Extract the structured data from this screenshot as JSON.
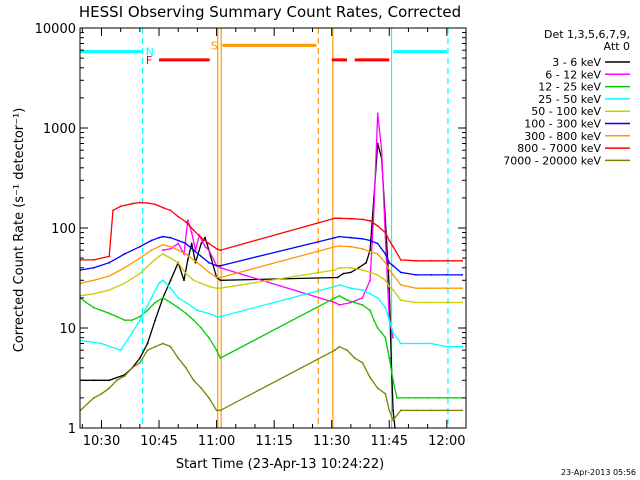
{
  "chart_data": {
    "type": "line",
    "title": "HESSI Observing Summary Count Rates, Corrected",
    "xlabel": "Start Time (23-Apr-13 10:24:22)",
    "ylabel": "Corrected Count Rate (s⁻¹ detector⁻¹)",
    "timestamp": "23-Apr-2013 05:56",
    "x_range_min": [
      624.4,
      725
    ],
    "ylim": [
      1,
      10000
    ],
    "log_y": true,
    "x_ticks": [
      {
        "min": 630,
        "label": "10:30"
      },
      {
        "min": 645,
        "label": "10:45"
      },
      {
        "min": 660,
        "label": "11:00"
      },
      {
        "min": 675,
        "label": "11:15"
      },
      {
        "min": 690,
        "label": "11:30"
      },
      {
        "min": 705,
        "label": "11:45"
      },
      {
        "min": 720,
        "label": "12:00"
      }
    ],
    "y_ticks": [
      {
        "v": 1,
        "label": "1"
      },
      {
        "v": 10,
        "label": "10"
      },
      {
        "v": 100,
        "label": "100"
      },
      {
        "v": 1000,
        "label": "1000"
      },
      {
        "v": 10000,
        "label": "10000"
      }
    ],
    "legend_header": [
      "Det 1,3,5,6,7,9,",
      "Att 0"
    ],
    "series": [
      {
        "name": "3 - 6 keV",
        "color": "#000000",
        "x": [
          624.5,
          628,
          632,
          636,
          638,
          640,
          642,
          644,
          646,
          648,
          650,
          651.5,
          652.5,
          653.5,
          654.5,
          656,
          657,
          658,
          660,
          661,
          691.5,
          693,
          695,
          697,
          699,
          700,
          701,
          702,
          703,
          704,
          705,
          705.5,
          706,
          706.5
        ],
        "y": [
          3,
          3,
          3,
          3.4,
          4,
          5,
          7,
          12,
          20,
          30,
          45,
          30,
          48,
          70,
          45,
          70,
          80,
          60,
          32,
          30,
          32,
          35,
          36,
          40,
          45,
          60,
          200,
          700,
          500,
          120,
          25,
          5,
          1.5,
          1
        ]
      },
      {
        "name": "6 - 12 keV",
        "color": "#ff00ff",
        "x": [
          646,
          648,
          650,
          651.5,
          652.5,
          653.5,
          654.5,
          655.5,
          657,
          658,
          660,
          661,
          690.8,
          692,
          695,
          698,
          700,
          701,
          702,
          703,
          704,
          705,
          706
        ],
        "y": [
          60,
          62,
          70,
          55,
          120,
          90,
          60,
          85,
          65,
          60,
          42,
          40,
          18,
          17,
          18,
          20,
          30,
          150,
          1400,
          600,
          80,
          12,
          8
        ]
      },
      {
        "name": "12 - 25 keV",
        "color": "#00cc00",
        "x": [
          624.5,
          626,
          628,
          630,
          632,
          634,
          636,
          638,
          640,
          642,
          644,
          646,
          648,
          650,
          652,
          654,
          656,
          658,
          660,
          661,
          690.8,
          692,
          694,
          696,
          698,
          700,
          701,
          702,
          703,
          704,
          705,
          706,
          707,
          710,
          712,
          715,
          718,
          720,
          722,
          724
        ],
        "y": [
          20,
          18,
          16,
          15,
          14,
          13,
          12,
          12,
          13,
          15,
          18,
          20,
          18,
          16,
          14,
          12,
          10,
          8,
          6,
          5,
          20,
          21,
          19,
          18,
          17,
          15,
          12,
          10,
          9,
          8,
          5,
          3,
          2,
          2,
          2,
          2,
          2,
          2,
          2,
          2
        ]
      },
      {
        "name": "25 - 50 keV",
        "color": "#00ffff",
        "x": [
          624.5,
          630,
          635,
          638,
          640,
          643,
          645,
          646,
          648,
          650,
          652,
          655,
          658,
          660,
          661,
          690.8,
          692,
          695,
          698,
          700,
          702,
          704,
          705,
          706,
          708,
          712,
          716,
          720,
          722,
          724
        ],
        "y": [
          7.5,
          7,
          6,
          9,
          12,
          20,
          28,
          30,
          25,
          20,
          18,
          15,
          14,
          13,
          13,
          26,
          27,
          25,
          24,
          22,
          20,
          16,
          12,
          9,
          7,
          7,
          7,
          6.5,
          6.5,
          6.5
        ]
      },
      {
        "name": "50 - 100 keV",
        "color": "#cccc00",
        "x": [
          624.5,
          628,
          632,
          636,
          640,
          643,
          645,
          646,
          648,
          650,
          652,
          654,
          656,
          658,
          660,
          661,
          690.8,
          692,
          695,
          698,
          700,
          702,
          704,
          705,
          706,
          708,
          712,
          716,
          720,
          724
        ],
        "y": [
          21,
          22,
          24,
          28,
          35,
          45,
          52,
          55,
          50,
          45,
          35,
          30,
          28,
          26,
          25,
          25,
          38,
          40,
          40,
          38,
          36,
          34,
          30,
          26,
          24,
          19,
          18,
          18,
          18,
          18
        ]
      },
      {
        "name": "100 - 300 keV",
        "color": "#0000ff",
        "x": [
          624.5,
          628,
          632,
          636,
          640,
          643,
          645,
          646,
          648,
          650,
          652,
          654,
          656,
          658,
          660,
          661,
          690.8,
          692,
          695,
          698,
          700,
          702,
          704,
          705,
          706,
          708,
          712,
          716,
          720,
          724
        ],
        "y": [
          38,
          40,
          45,
          55,
          65,
          75,
          80,
          82,
          80,
          75,
          70,
          60,
          52,
          45,
          42,
          42,
          80,
          82,
          80,
          78,
          75,
          70,
          55,
          45,
          42,
          36,
          34,
          34,
          34,
          34
        ]
      },
      {
        "name": "300 - 800 keV",
        "color": "#ff9900",
        "x": [
          624.5,
          628,
          632,
          636,
          640,
          643,
          645,
          646,
          648,
          650,
          652,
          654,
          656,
          658,
          660,
          661,
          690.8,
          692,
          695,
          698,
          700,
          702,
          704,
          705,
          706,
          708,
          712,
          716,
          720,
          724
        ],
        "y": [
          28,
          30,
          33,
          40,
          50,
          60,
          65,
          68,
          65,
          60,
          55,
          48,
          42,
          36,
          32,
          32,
          65,
          66,
          65,
          62,
          58,
          55,
          45,
          38,
          34,
          27,
          25,
          25,
          25,
          25
        ]
      },
      {
        "name": "800 - 7000 keV",
        "color": "#ff0000",
        "x": [
          624.5,
          628,
          632,
          633,
          635,
          638,
          640,
          642,
          644,
          646,
          648,
          650,
          652,
          654,
          656,
          658,
          660,
          661,
          690.8,
          692,
          695,
          698,
          700,
          702,
          704,
          705,
          706,
          708,
          712,
          716,
          720,
          724
        ],
        "y": [
          48,
          48,
          52,
          150,
          165,
          175,
          180,
          178,
          172,
          160,
          150,
          130,
          115,
          95,
          80,
          70,
          62,
          60,
          125,
          125,
          124,
          122,
          118,
          105,
          90,
          75,
          65,
          48,
          47,
          47,
          47,
          47
        ]
      },
      {
        "name": "7000 - 20000 keV",
        "color": "#808000",
        "x": [
          624.5,
          628,
          630,
          632,
          634,
          636,
          638,
          640,
          642,
          644,
          646,
          648,
          650,
          652,
          654,
          656,
          658,
          660,
          661,
          690.8,
          692,
          694,
          696,
          698,
          700,
          702,
          704,
          705,
          706,
          708,
          712,
          716,
          720,
          724
        ],
        "y": [
          1.5,
          2,
          2.2,
          2.5,
          3,
          3.3,
          4,
          4.5,
          6,
          6.5,
          7,
          6.5,
          5,
          4,
          3,
          2.5,
          2,
          1.5,
          1.5,
          6,
          6.5,
          6,
          5,
          4.5,
          3.2,
          2.5,
          2.2,
          1.5,
          1.2,
          1.5,
          1.5,
          1.5,
          1.5,
          1.5
        ]
      }
    ],
    "flags": [
      {
        "label": "N",
        "color": "#00ffff",
        "segments": [
          [
            624.5,
            640.5
          ],
          [
            706,
            720
          ]
        ],
        "y": 5800
      },
      {
        "label": "F",
        "color": "#ff0000",
        "segments": [
          [
            645,
            658.2
          ],
          [
            690,
            694
          ],
          [
            696,
            705
          ]
        ],
        "y": 4800
      },
      {
        "label": "S",
        "color": "#ff9900",
        "segments": [
          [
            661.5,
            686
          ]
        ],
        "y": 6700
      }
    ],
    "markers": [
      {
        "x": 640.7,
        "color": "#00ffff",
        "style": "dashed"
      },
      {
        "x": 660.3,
        "color": "#ff9900",
        "style": "solid"
      },
      {
        "x": 661.2,
        "color": "#ff9900",
        "style": "solid"
      },
      {
        "x": 686.5,
        "color": "#ff9900",
        "style": "dashed"
      },
      {
        "x": 690.3,
        "color": "#ff9900",
        "style": "solid"
      },
      {
        "x": 705.6,
        "color": "#00ffff",
        "style": "solid"
      },
      {
        "x": 720.3,
        "color": "#00ffff",
        "style": "dashed"
      }
    ]
  }
}
